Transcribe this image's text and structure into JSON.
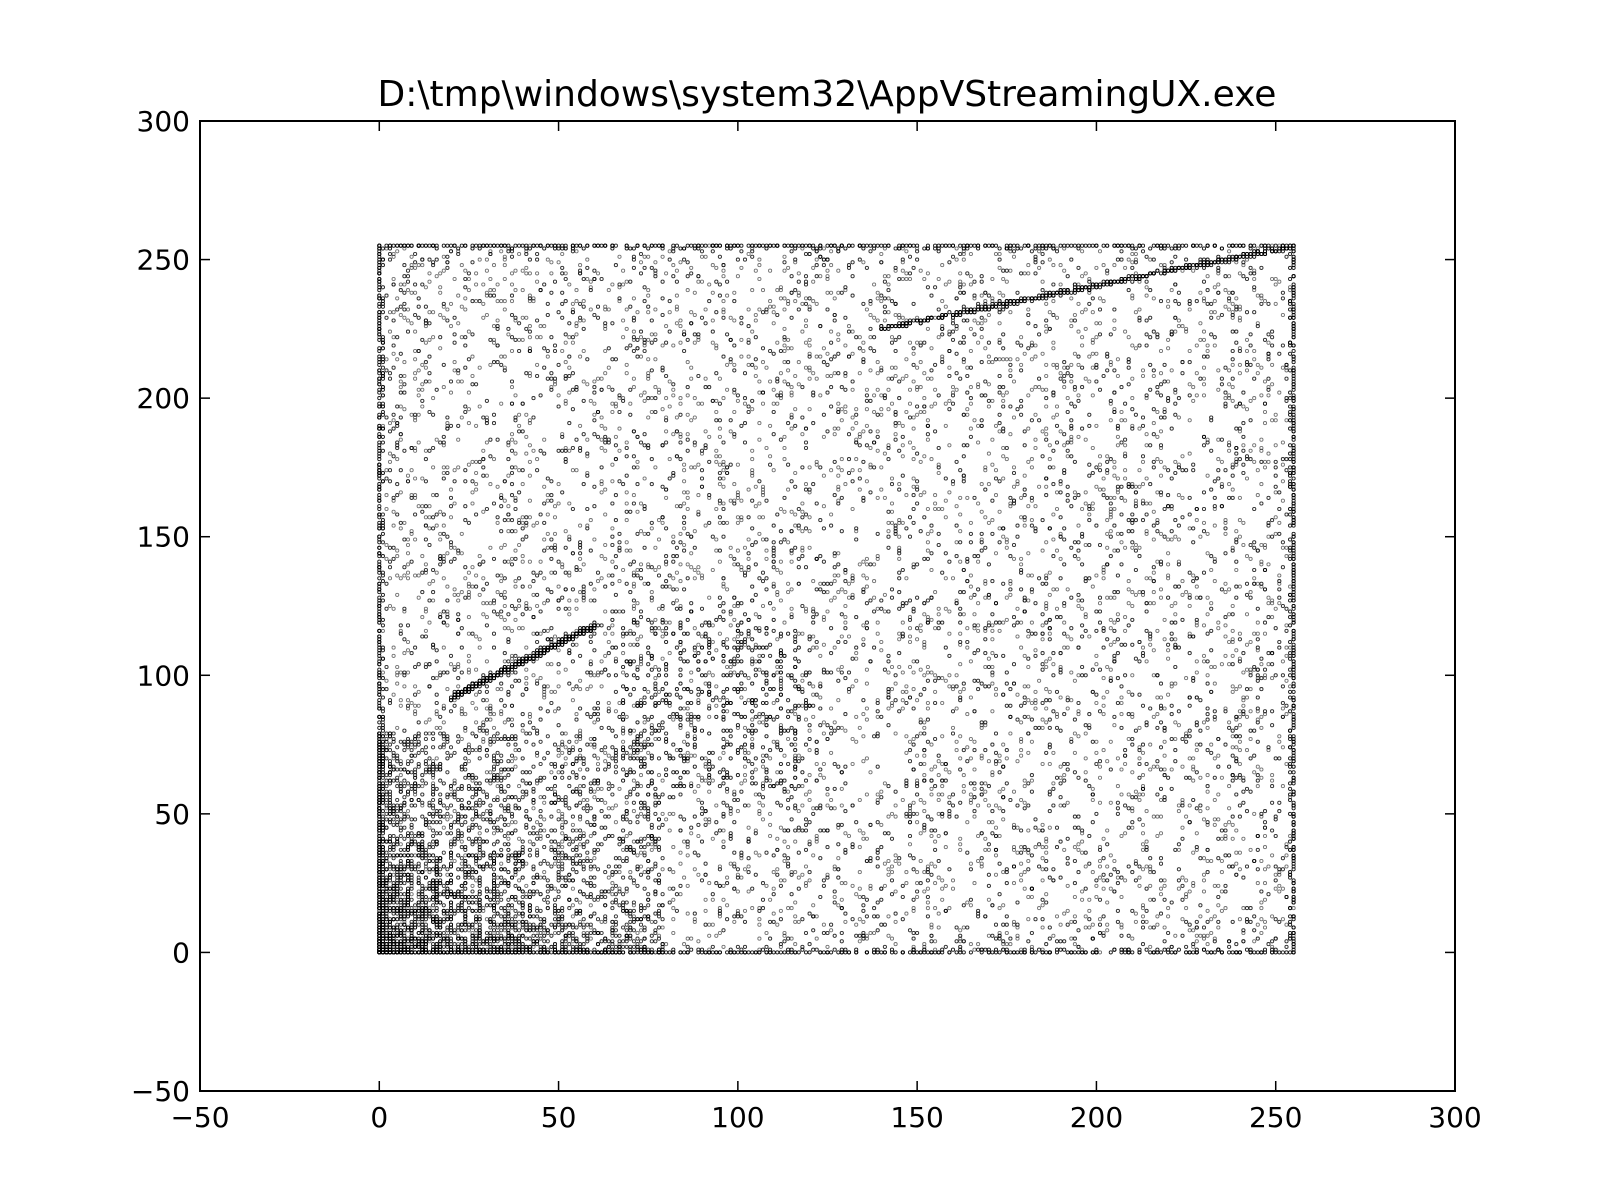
{
  "chart_data": {
    "type": "scatter",
    "title": "D:\\tmp\\windows\\system32\\AppVStreamingUX.exe",
    "xlabel": "",
    "ylabel": "",
    "xlim": [
      -50,
      300
    ],
    "ylim": [
      -50,
      300
    ],
    "x_ticks": [
      -50,
      0,
      50,
      100,
      150,
      200,
      250,
      300
    ],
    "y_ticks": [
      -50,
      0,
      50,
      100,
      150,
      200,
      250,
      300
    ],
    "x_tick_labels": [
      "−50",
      "0",
      "50",
      "100",
      "150",
      "200",
      "250",
      "300"
    ],
    "y_tick_labels": [
      "−50",
      "0",
      "50",
      "100",
      "150",
      "200",
      "250",
      "300"
    ],
    "grid": false,
    "legend": "none",
    "data_extent": {
      "x": [
        0,
        255
      ],
      "y": [
        0,
        255
      ]
    },
    "marker_color": "#000000",
    "dense_features": [
      {
        "kind": "line",
        "from": [
          140,
          225
        ],
        "to": [
          255,
          255
        ]
      },
      {
        "kind": "line",
        "from": [
          20,
          92
        ],
        "to": [
          60,
          118
        ]
      },
      {
        "kind": "cluster",
        "x": [
          65,
          120
        ],
        "y": [
          60,
          120
        ]
      },
      {
        "kind": "cluster",
        "x": [
          0,
          40
        ],
        "y": [
          0,
          40
        ]
      },
      {
        "kind": "line",
        "from": [
          0,
          0
        ],
        "to": [
          255,
          0
        ]
      },
      {
        "kind": "line",
        "from": [
          0,
          0
        ],
        "to": [
          0,
          255
        ]
      },
      {
        "kind": "line",
        "from": [
          255,
          0
        ],
        "to": [
          255,
          255
        ]
      },
      {
        "kind": "line",
        "from": [
          0,
          255
        ],
        "to": [
          255,
          255
        ]
      }
    ]
  }
}
